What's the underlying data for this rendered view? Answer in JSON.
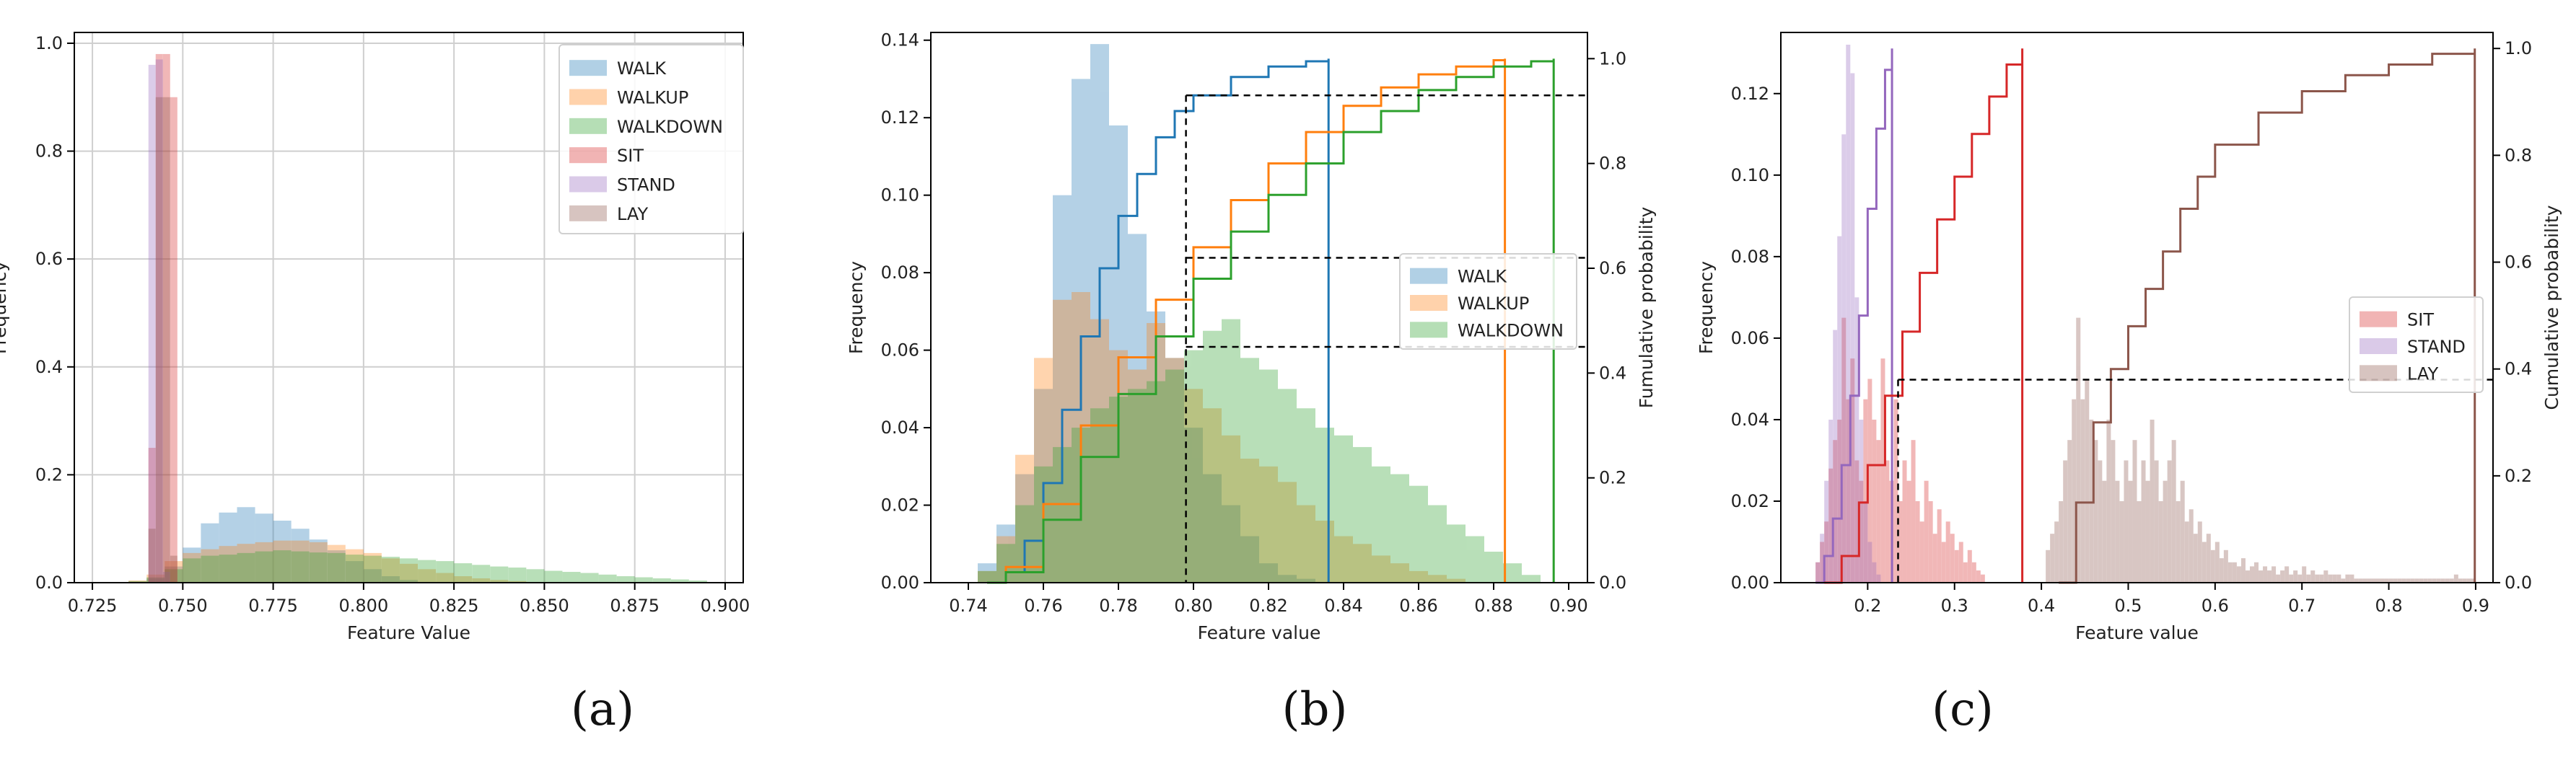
{
  "chart_data": [
    {
      "type": "histogram",
      "panel_label": "(a)",
      "xlabel": "Feature Value",
      "ylabel": "Frequency",
      "xlim": [
        0.72,
        0.905
      ],
      "ylim": [
        0,
        1.02
      ],
      "xticks": [
        "0.725",
        "0.750",
        "0.775",
        "0.800",
        "0.825",
        "0.850",
        "0.875",
        "0.900"
      ],
      "yticks": [
        "0.0",
        "0.2",
        "0.4",
        "0.6",
        "0.8",
        "1.0"
      ],
      "grid": true,
      "legend_position": "top-right",
      "series": [
        {
          "name": "WALK",
          "color": "#1f77b4",
          "bin_start": 0.735,
          "bin_width": 0.005,
          "values": [
            0.002,
            0.008,
            0.03,
            0.065,
            0.11,
            0.13,
            0.14,
            0.128,
            0.115,
            0.1,
            0.08,
            0.06,
            0.04,
            0.025,
            0.012,
            0.005
          ]
        },
        {
          "name": "WALKUP",
          "color": "#ff7f0e",
          "bin_start": 0.735,
          "bin_width": 0.005,
          "values": [
            0.004,
            0.015,
            0.04,
            0.055,
            0.062,
            0.068,
            0.072,
            0.075,
            0.078,
            0.078,
            0.075,
            0.07,
            0.062,
            0.055,
            0.045,
            0.035,
            0.025,
            0.018,
            0.012,
            0.008,
            0.005,
            0.003
          ]
        },
        {
          "name": "WALKDOWN",
          "color": "#2ca02c",
          "bin_start": 0.735,
          "bin_width": 0.005,
          "values": [
            0.003,
            0.01,
            0.025,
            0.045,
            0.05,
            0.052,
            0.055,
            0.058,
            0.06,
            0.058,
            0.056,
            0.055,
            0.052,
            0.05,
            0.048,
            0.045,
            0.042,
            0.04,
            0.036,
            0.033,
            0.03,
            0.028,
            0.025,
            0.022,
            0.02,
            0.018,
            0.015,
            0.012,
            0.01,
            0.008,
            0.006,
            0.004
          ]
        },
        {
          "name": "SIT",
          "color": "#d62728",
          "bin_start": 0.7405,
          "bin_width": 0.002,
          "values": [
            0.25,
            0.98,
            0.98,
            0.9
          ]
        },
        {
          "name": "STAND",
          "color": "#9467bd",
          "bin_start": 0.7405,
          "bin_width": 0.002,
          "values": [
            0.96,
            0.97,
            0.02
          ]
        },
        {
          "name": "LAY",
          "color": "#8c564b",
          "bin_start": 0.7405,
          "bin_width": 0.002,
          "values": [
            0.1,
            0.9,
            0.9,
            0.05
          ]
        }
      ]
    },
    {
      "type": "histogram",
      "panel_label": "(b)",
      "xlabel": "Feature value",
      "ylabel": "Frequency",
      "ylabel_right": "Fumulative probability",
      "xlim": [
        0.73,
        0.905
      ],
      "ylim": [
        0,
        0.142
      ],
      "ylim_right": [
        0,
        1.05
      ],
      "xticks": [
        "0.74",
        "0.76",
        "0.78",
        "0.80",
        "0.82",
        "0.84",
        "0.86",
        "0.88",
        "0.90"
      ],
      "yticks": [
        "0.00",
        "0.02",
        "0.04",
        "0.06",
        "0.08",
        "0.10",
        "0.12",
        "0.14"
      ],
      "yticks_right": [
        "0.0",
        "0.2",
        "0.4",
        "0.6",
        "0.8",
        "1.0"
      ],
      "grid": false,
      "legend_position": "center-right",
      "series": [
        {
          "name": "WALK",
          "color": "#1f77b4",
          "bin_start": 0.7375,
          "bin_width": 0.005,
          "values": [
            0.0,
            0.005,
            0.015,
            0.028,
            0.05,
            0.1,
            0.13,
            0.139,
            0.118,
            0.09,
            0.07,
            0.058,
            0.04,
            0.028,
            0.02,
            0.012,
            0.005,
            0.002,
            0.001,
            0.0
          ]
        },
        {
          "name": "WALKUP",
          "color": "#ff7f0e",
          "bin_start": 0.7375,
          "bin_width": 0.005,
          "values": [
            0.0,
            0.003,
            0.012,
            0.033,
            0.058,
            0.073,
            0.075,
            0.068,
            0.06,
            0.055,
            0.067,
            0.058,
            0.05,
            0.045,
            0.038,
            0.032,
            0.03,
            0.026,
            0.02,
            0.016,
            0.012,
            0.01,
            0.007,
            0.005,
            0.003,
            0.002,
            0.001,
            0.0,
            0.0,
            0.0
          ]
        },
        {
          "name": "WALKDOWN",
          "color": "#2ca02c",
          "bin_start": 0.7375,
          "bin_width": 0.005,
          "values": [
            0.0,
            0.003,
            0.01,
            0.02,
            0.03,
            0.035,
            0.04,
            0.045,
            0.048,
            0.05,
            0.052,
            0.055,
            0.06,
            0.065,
            0.068,
            0.058,
            0.055,
            0.05,
            0.045,
            0.04,
            0.038,
            0.035,
            0.03,
            0.028,
            0.025,
            0.02,
            0.015,
            0.012,
            0.008,
            0.005,
            0.002
          ]
        }
      ],
      "cumulative": [
        {
          "name": "WALK",
          "color": "#1f77b4",
          "x": [
            0.745,
            0.75,
            0.755,
            0.76,
            0.765,
            0.77,
            0.775,
            0.78,
            0.785,
            0.79,
            0.795,
            0.8,
            0.81,
            0.82,
            0.83,
            0.836
          ],
          "y": [
            0.0,
            0.02,
            0.08,
            0.19,
            0.33,
            0.47,
            0.6,
            0.7,
            0.78,
            0.85,
            0.9,
            0.93,
            0.965,
            0.985,
            0.995,
            1.0
          ]
        },
        {
          "name": "WALKUP",
          "color": "#ff7f0e",
          "x": [
            0.745,
            0.75,
            0.76,
            0.77,
            0.78,
            0.79,
            0.8,
            0.81,
            0.82,
            0.83,
            0.84,
            0.85,
            0.86,
            0.87,
            0.88,
            0.883
          ],
          "y": [
            0.0,
            0.03,
            0.15,
            0.3,
            0.43,
            0.54,
            0.64,
            0.73,
            0.8,
            0.86,
            0.91,
            0.945,
            0.97,
            0.985,
            0.997,
            1.0
          ]
        },
        {
          "name": "WALKDOWN",
          "color": "#2ca02c",
          "x": [
            0.745,
            0.75,
            0.76,
            0.77,
            0.78,
            0.79,
            0.8,
            0.81,
            0.82,
            0.83,
            0.84,
            0.85,
            0.86,
            0.87,
            0.88,
            0.89,
            0.896
          ],
          "y": [
            0.0,
            0.02,
            0.12,
            0.24,
            0.36,
            0.47,
            0.58,
            0.67,
            0.74,
            0.8,
            0.86,
            0.9,
            0.94,
            0.965,
            0.985,
            0.995,
            1.0
          ]
        }
      ],
      "reference_lines": {
        "x": 0.798,
        "y_right": [
          0.93,
          0.62,
          0.45
        ]
      }
    },
    {
      "type": "histogram",
      "panel_label": "(c)",
      "xlabel": "Feature value",
      "ylabel": "Frequency",
      "ylabel_right": "Cumulative probability",
      "xlim": [
        0.1,
        0.92
      ],
      "ylim": [
        0,
        0.135
      ],
      "ylim_right": [
        0,
        1.03
      ],
      "xticks": [
        "0.2",
        "0.3",
        "0.4",
        "0.5",
        "0.6",
        "0.7",
        "0.8",
        "0.9"
      ],
      "yticks": [
        "0.00",
        "0.02",
        "0.04",
        "0.06",
        "0.08",
        "0.10",
        "0.12"
      ],
      "yticks_right": [
        "0.0",
        "0.2",
        "0.4",
        "0.6",
        "0.8",
        "1.0"
      ],
      "grid": false,
      "legend_position": "center-right",
      "series": [
        {
          "name": "SIT",
          "color": "#d62728",
          "bin_start": 0.14,
          "bin_width": 0.005,
          "values": [
            0.005,
            0.01,
            0.015,
            0.028,
            0.035,
            0.04,
            0.065,
            0.045,
            0.055,
            0.03,
            0.025,
            0.045,
            0.05,
            0.04,
            0.035,
            0.055,
            0.03,
            0.025,
            0.045,
            0.02,
            0.03,
            0.025,
            0.035,
            0.02,
            0.015,
            0.025,
            0.02,
            0.012,
            0.018,
            0.01,
            0.015,
            0.012,
            0.008,
            0.01,
            0.005,
            0.008,
            0.005,
            0.003,
            0.002
          ]
        },
        {
          "name": "STAND",
          "color": "#9467bd",
          "bin_start": 0.14,
          "bin_width": 0.005,
          "values": [
            0.005,
            0.012,
            0.025,
            0.04,
            0.062,
            0.085,
            0.11,
            0.132,
            0.125,
            0.07,
            0.04,
            0.02,
            0.01,
            0.005,
            0.002,
            0.0,
            0.0,
            0.0
          ]
        },
        {
          "name": "LAY",
          "color": "#8c564b",
          "bin_start": 0.405,
          "bin_width": 0.005,
          "values": [
            0.008,
            0.012,
            0.015,
            0.02,
            0.03,
            0.035,
            0.045,
            0.065,
            0.045,
            0.05,
            0.04,
            0.035,
            0.03,
            0.025,
            0.04,
            0.035,
            0.025,
            0.02,
            0.03,
            0.025,
            0.035,
            0.02,
            0.03,
            0.025,
            0.04,
            0.03,
            0.02,
            0.025,
            0.03,
            0.035,
            0.02,
            0.025,
            0.015,
            0.018,
            0.012,
            0.015,
            0.01,
            0.012,
            0.008,
            0.01,
            0.006,
            0.008,
            0.005,
            0.005,
            0.004,
            0.006,
            0.003,
            0.004,
            0.005,
            0.003,
            0.004,
            0.003,
            0.004,
            0.002,
            0.003,
            0.004,
            0.002,
            0.003,
            0.002,
            0.004,
            0.002,
            0.003,
            0.002,
            0.002,
            0.003,
            0.002,
            0.002,
            0.002,
            0.001,
            0.002,
            0.002,
            0.001,
            0.001,
            0.001,
            0.001,
            0.001,
            0.001,
            0.001,
            0.001,
            0.001,
            0.001,
            0.001,
            0.001,
            0.001,
            0.001,
            0.001,
            0.001,
            0.001,
            0.001,
            0.001,
            0.001,
            0.001,
            0.001,
            0.001,
            0.002,
            0.001,
            0.001,
            0.001,
            0.001
          ]
        }
      ],
      "cumulative": [
        {
          "name": "STAND",
          "color": "#9467bd",
          "x": [
            0.14,
            0.15,
            0.16,
            0.17,
            0.18,
            0.19,
            0.2,
            0.21,
            0.22,
            0.228
          ],
          "y": [
            0.0,
            0.05,
            0.12,
            0.22,
            0.35,
            0.5,
            0.7,
            0.85,
            0.96,
            1.0
          ]
        },
        {
          "name": "SIT",
          "color": "#d62728",
          "x": [
            0.15,
            0.17,
            0.19,
            0.2,
            0.22,
            0.24,
            0.26,
            0.28,
            0.3,
            0.32,
            0.34,
            0.36,
            0.378
          ],
          "y": [
            0.0,
            0.05,
            0.15,
            0.22,
            0.35,
            0.47,
            0.58,
            0.68,
            0.76,
            0.84,
            0.91,
            0.97,
            1.0
          ]
        },
        {
          "name": "LAY",
          "color": "#8c564b",
          "x": [
            0.42,
            0.44,
            0.46,
            0.48,
            0.5,
            0.52,
            0.54,
            0.56,
            0.58,
            0.6,
            0.65,
            0.7,
            0.75,
            0.8,
            0.85,
            0.899
          ],
          "y": [
            0.0,
            0.15,
            0.3,
            0.4,
            0.48,
            0.55,
            0.62,
            0.7,
            0.76,
            0.82,
            0.88,
            0.92,
            0.95,
            0.97,
            0.99,
            1.0
          ]
        }
      ],
      "reference_lines": {
        "x": 0.235,
        "y_right": [
          0.38
        ]
      }
    }
  ]
}
